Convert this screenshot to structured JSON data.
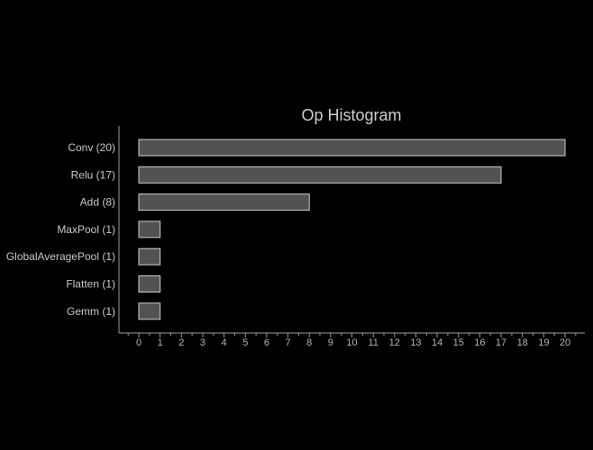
{
  "chart_data": {
    "type": "bar",
    "orientation": "horizontal",
    "title": "Op Histogram",
    "categories": [
      "Conv (20)",
      "Relu (17)",
      "Add (8)",
      "MaxPool (1)",
      "GlobalAveragePool (1)",
      "Flatten (1)",
      "Gemm (1)"
    ],
    "values": [
      20,
      17,
      8,
      1,
      1,
      1,
      1
    ],
    "xlim": [
      0,
      20
    ],
    "xticks": [
      0,
      1,
      2,
      3,
      4,
      5,
      6,
      7,
      8,
      9,
      10,
      11,
      12,
      13,
      14,
      15,
      16,
      17,
      18,
      19,
      20
    ],
    "minor_ticks": true,
    "grid": false,
    "legend": "none",
    "colors": {
      "background": "#000000",
      "bar_fill": "#525252",
      "bar_stroke": "#cfcfcf",
      "axis": "#9a9a9a",
      "text": "#c8c8c8"
    }
  }
}
